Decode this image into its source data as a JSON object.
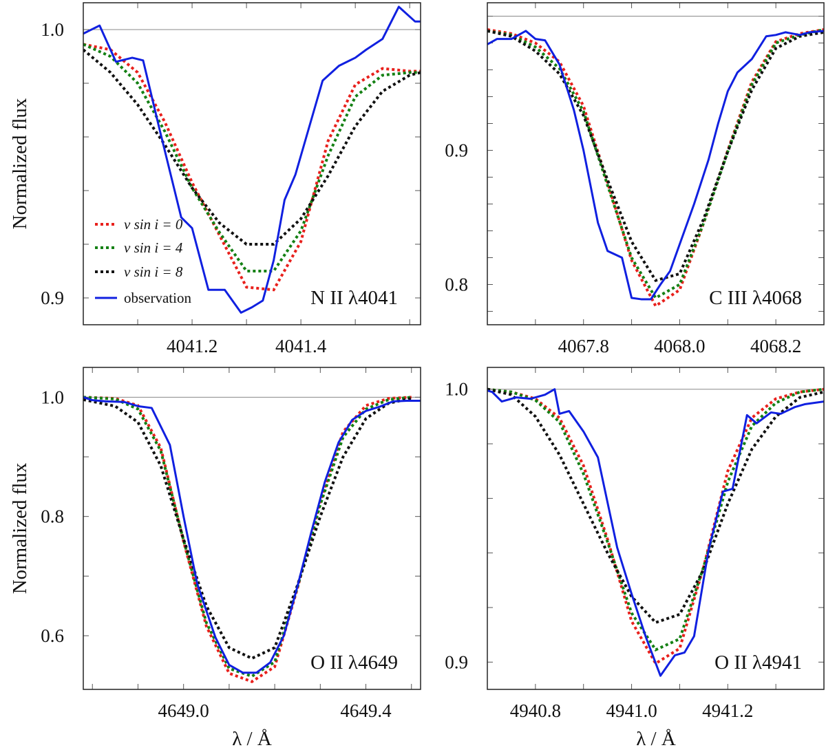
{
  "chart_data": [
    {
      "type": "line",
      "panel": "top-left",
      "line_label": "N II λ4041",
      "ylabel": "Normalized flux",
      "xlabel": "",
      "xlim": [
        4041.0,
        4041.62
      ],
      "ylim": [
        0.89,
        1.01
      ],
      "xticks": [
        4041.2,
        4041.4
      ],
      "xtick_labels": [
        "4041.2",
        "4041.4"
      ],
      "yticks": [
        0.9,
        1.0
      ],
      "ytick_labels": [
        "0.9",
        "1.0"
      ],
      "y_minor_step": 0.02,
      "x_minor_step": 0.1,
      "legend_position": "lower-left",
      "series": [
        {
          "name": "v sin i = 0",
          "color": "#e8201c",
          "style": "dotted",
          "x": [
            4041.0,
            4041.05,
            4041.1,
            4041.15,
            4041.2,
            4041.25,
            4041.3,
            4041.35,
            4041.4,
            4041.45,
            4041.5,
            4041.55,
            4041.6,
            4041.62
          ],
          "y": [
            0.9945,
            0.9925,
            0.984,
            0.9655,
            0.943,
            0.9235,
            0.904,
            0.903,
            0.921,
            0.9585,
            0.9795,
            0.9855,
            0.9845,
            0.9845
          ]
        },
        {
          "name": "v sin i = 4",
          "color": "#148014",
          "style": "dotted",
          "x": [
            4041.0,
            4041.05,
            4041.1,
            4041.15,
            4041.2,
            4041.25,
            4041.3,
            4041.35,
            4041.4,
            4041.45,
            4041.5,
            4041.55,
            4041.6,
            4041.62
          ],
          "y": [
            0.9945,
            0.99,
            0.98,
            0.962,
            0.941,
            0.9245,
            0.91,
            0.91,
            0.925,
            0.953,
            0.975,
            0.983,
            0.984,
            0.984
          ]
        },
        {
          "name": "v sin i = 8",
          "color": "#111111",
          "style": "dotted",
          "x": [
            4041.0,
            4041.05,
            4041.1,
            4041.15,
            4041.2,
            4041.25,
            4041.3,
            4041.35,
            4041.4,
            4041.45,
            4041.5,
            4041.55,
            4041.6,
            4041.62
          ],
          "y": [
            0.9925,
            0.984,
            0.972,
            0.957,
            0.941,
            0.928,
            0.92,
            0.92,
            0.9295,
            0.9455,
            0.964,
            0.977,
            0.983,
            0.984
          ]
        },
        {
          "name": "observation",
          "color": "#1020e0",
          "style": "solid",
          "x": [
            4041.0,
            4041.03,
            4041.06,
            4041.09,
            4041.11,
            4041.14,
            4041.18,
            4041.2,
            4041.23,
            4041.26,
            4041.29,
            4041.31,
            4041.33,
            4041.35,
            4041.37,
            4041.39,
            4041.41,
            4041.44,
            4041.47,
            4041.5,
            4041.52,
            4041.55,
            4041.58,
            4041.61,
            4041.62
          ],
          "y": [
            0.9985,
            1.0015,
            0.988,
            0.9895,
            0.9885,
            0.963,
            0.93,
            0.926,
            0.903,
            0.903,
            0.8945,
            0.8965,
            0.899,
            0.914,
            0.9365,
            0.946,
            0.96,
            0.981,
            0.9865,
            0.9895,
            0.9925,
            0.9965,
            1.0085,
            1.003,
            1.003
          ]
        }
      ]
    },
    {
      "type": "line",
      "panel": "top-right",
      "line_label": "C III λ4068",
      "ylabel": "",
      "xlabel": "",
      "xlim": [
        4067.6,
        4068.3
      ],
      "ylim": [
        0.77,
        1.01
      ],
      "xticks": [
        4067.8,
        4068.0,
        4068.2
      ],
      "xtick_labels": [
        "4067.8",
        "4068.0",
        "4068.2"
      ],
      "yticks": [
        0.8,
        0.9
      ],
      "ytick_labels": [
        "0.8",
        "0.9"
      ],
      "y_minor_step": 0.02,
      "x_minor_step": 0.1,
      "series": [
        {
          "name": "v sin i = 0",
          "color": "#e8201c",
          "style": "dotted",
          "x": [
            4067.6,
            4067.65,
            4067.7,
            4067.75,
            4067.8,
            4067.85,
            4067.9,
            4067.95,
            4068.0,
            4068.05,
            4068.1,
            4068.15,
            4068.2,
            4068.25,
            4068.3
          ],
          "y": [
            0.99,
            0.987,
            0.98,
            0.966,
            0.933,
            0.876,
            0.818,
            0.784,
            0.796,
            0.846,
            0.9,
            0.951,
            0.981,
            0.987,
            0.99
          ]
        },
        {
          "name": "v sin i = 4",
          "color": "#148014",
          "style": "dotted",
          "x": [
            4067.6,
            4067.65,
            4067.7,
            4067.75,
            4067.8,
            4067.85,
            4067.9,
            4067.95,
            4068.0,
            4068.05,
            4068.1,
            4068.15,
            4068.2,
            4068.25,
            4068.3
          ],
          "y": [
            0.989,
            0.986,
            0.977,
            0.961,
            0.929,
            0.874,
            0.82,
            0.79,
            0.8,
            0.846,
            0.899,
            0.949,
            0.98,
            0.986,
            0.99
          ]
        },
        {
          "name": "v sin i = 8",
          "color": "#111111",
          "style": "dotted",
          "x": [
            4067.6,
            4067.65,
            4067.7,
            4067.75,
            4067.8,
            4067.85,
            4067.9,
            4067.95,
            4068.0,
            4068.05,
            4068.1,
            4068.15,
            4068.2,
            4068.25,
            4068.3
          ],
          "y": [
            0.989,
            0.985,
            0.974,
            0.957,
            0.926,
            0.878,
            0.832,
            0.803,
            0.808,
            0.849,
            0.899,
            0.945,
            0.976,
            0.985,
            0.988
          ]
        },
        {
          "name": "observation",
          "color": "#1020e0",
          "style": "solid",
          "x": [
            4067.6,
            4067.62,
            4067.65,
            4067.68,
            4067.7,
            4067.72,
            4067.75,
            4067.78,
            4067.8,
            4067.83,
            4067.85,
            4067.88,
            4067.9,
            4067.92,
            4067.94,
            4067.96,
            4067.98,
            4068.0,
            4068.03,
            4068.06,
            4068.08,
            4068.1,
            4068.12,
            4068.15,
            4068.18,
            4068.2,
            4068.22,
            4068.25,
            4068.27,
            4068.3
          ],
          "y": [
            0.979,
            0.983,
            0.983,
            0.989,
            0.983,
            0.982,
            0.964,
            0.93,
            0.9,
            0.846,
            0.825,
            0.82,
            0.79,
            0.789,
            0.789,
            0.8,
            0.81,
            0.83,
            0.86,
            0.893,
            0.92,
            0.944,
            0.958,
            0.968,
            0.985,
            0.986,
            0.988,
            0.986,
            0.988,
            0.989
          ]
        }
      ]
    },
    {
      "type": "line",
      "panel": "bottom-left",
      "line_label": "O II λ4649",
      "ylabel": "Normalized flux",
      "xlabel": "λ / Å",
      "xlim": [
        4648.78,
        4649.52
      ],
      "ylim": [
        0.51,
        1.05
      ],
      "xticks": [
        4649.0,
        4649.4
      ],
      "xtick_labels": [
        "4649.0",
        "4649.4"
      ],
      "yticks": [
        0.6,
        0.8,
        1.0
      ],
      "ytick_labels": [
        "0.6",
        "0.8",
        "1.0"
      ],
      "y_minor_step": 0.1,
      "x_minor_step": 0.1,
      "series": [
        {
          "name": "v sin i = 0",
          "color": "#e8201c",
          "style": "dotted",
          "x": [
            4648.78,
            4648.85,
            4648.9,
            4648.95,
            4649.0,
            4649.05,
            4649.1,
            4649.15,
            4649.2,
            4649.25,
            4649.3,
            4649.35,
            4649.4,
            4649.45,
            4649.5
          ],
          "y": [
            1.0,
            0.998,
            0.986,
            0.915,
            0.758,
            0.616,
            0.537,
            0.523,
            0.548,
            0.68,
            0.825,
            0.942,
            0.986,
            0.998,
            1.0
          ]
        },
        {
          "name": "v sin i = 4",
          "color": "#148014",
          "style": "dotted",
          "x": [
            4648.78,
            4648.85,
            4648.9,
            4648.95,
            4649.0,
            4649.05,
            4649.1,
            4649.15,
            4649.2,
            4649.25,
            4649.3,
            4649.35,
            4649.4,
            4649.45,
            4649.5
          ],
          "y": [
            1.0,
            0.997,
            0.98,
            0.91,
            0.76,
            0.622,
            0.545,
            0.532,
            0.556,
            0.682,
            0.82,
            0.933,
            0.98,
            0.996,
            1.0
          ]
        },
        {
          "name": "v sin i = 8",
          "color": "#111111",
          "style": "dotted",
          "x": [
            4648.78,
            4648.85,
            4648.9,
            4648.95,
            4649.0,
            4649.05,
            4649.1,
            4649.15,
            4649.2,
            4649.25,
            4649.3,
            4649.35,
            4649.4,
            4649.45,
            4649.5
          ],
          "y": [
            0.996,
            0.985,
            0.958,
            0.885,
            0.762,
            0.65,
            0.58,
            0.562,
            0.58,
            0.685,
            0.8,
            0.9,
            0.964,
            0.99,
            0.998
          ]
        },
        {
          "name": "observation",
          "color": "#1020e0",
          "style": "solid",
          "x": [
            4648.78,
            4648.8,
            4648.83,
            4648.87,
            4648.9,
            4648.93,
            4648.97,
            4649.0,
            4649.03,
            4649.07,
            4649.1,
            4649.13,
            4649.16,
            4649.19,
            4649.22,
            4649.25,
            4649.28,
            4649.31,
            4649.34,
            4649.37,
            4649.4,
            4649.43,
            4649.46,
            4649.49,
            4649.52
          ],
          "y": [
            1.0,
            0.995,
            0.993,
            0.992,
            0.985,
            0.982,
            0.92,
            0.8,
            0.687,
            0.597,
            0.551,
            0.538,
            0.538,
            0.555,
            0.6,
            0.683,
            0.773,
            0.858,
            0.924,
            0.962,
            0.977,
            0.984,
            0.993,
            0.994,
            0.994
          ]
        }
      ]
    },
    {
      "type": "line",
      "panel": "bottom-right",
      "line_label": "O II λ4941",
      "ylabel": "",
      "xlabel": "λ / Å",
      "xlim": [
        4940.7,
        4941.4
      ],
      "ylim": [
        0.89,
        1.008
      ],
      "xticks": [
        4940.8,
        4941.0,
        4941.2
      ],
      "xtick_labels": [
        "4940.8",
        "4941.0",
        "4941.2"
      ],
      "yticks": [
        0.9,
        1.0
      ],
      "ytick_labels": [
        "0.9",
        "1.0"
      ],
      "y_minor_step": 0.02,
      "x_minor_step": 0.1,
      "series": [
        {
          "name": "v sin i = 0",
          "color": "#e8201c",
          "style": "dotted",
          "x": [
            4940.7,
            4940.75,
            4940.8,
            4940.85,
            4940.9,
            4940.95,
            4941.0,
            4941.05,
            4941.1,
            4941.15,
            4941.2,
            4941.25,
            4941.3,
            4941.35,
            4941.4
          ],
          "y": [
            1.0,
            0.999,
            0.9965,
            0.9895,
            0.972,
            0.945,
            0.915,
            0.8995,
            0.905,
            0.935,
            0.97,
            0.9895,
            0.9965,
            0.999,
            1.0
          ]
        },
        {
          "name": "v sin i = 4",
          "color": "#148014",
          "style": "dotted",
          "x": [
            4940.7,
            4940.75,
            4940.8,
            4940.85,
            4940.9,
            4940.95,
            4941.0,
            4941.05,
            4941.1,
            4941.15,
            4941.2,
            4941.25,
            4941.3,
            4941.35,
            4941.4
          ],
          "y": [
            1.0,
            0.999,
            0.996,
            0.988,
            0.969,
            0.944,
            0.918,
            0.9045,
            0.9085,
            0.935,
            0.966,
            0.9865,
            0.995,
            0.999,
            1.0
          ]
        },
        {
          "name": "v sin i = 8",
          "color": "#111111",
          "style": "dotted",
          "x": [
            4940.7,
            4940.75,
            4940.8,
            4940.85,
            4940.9,
            4940.95,
            4941.0,
            4941.05,
            4941.1,
            4941.15,
            4941.2,
            4941.25,
            4941.3,
            4941.35,
            4941.4
          ],
          "y": [
            1.0,
            0.998,
            0.99,
            0.976,
            0.958,
            0.94,
            0.924,
            0.9145,
            0.9175,
            0.934,
            0.958,
            0.978,
            0.99,
            0.997,
            0.999
          ]
        },
        {
          "name": "observation",
          "color": "#1020e0",
          "style": "solid",
          "x": [
            4940.7,
            4940.71,
            4940.73,
            4940.76,
            4940.79,
            4940.82,
            4940.84,
            4940.85,
            4940.87,
            4940.9,
            4940.93,
            4940.97,
            4941.0,
            4941.03,
            4941.06,
            4941.09,
            4941.11,
            4941.13,
            4941.16,
            4941.19,
            4941.21,
            4941.24,
            4941.26,
            4941.29,
            4941.31,
            4941.34,
            4941.36,
            4941.4
          ],
          "y": [
            0.9995,
            0.999,
            0.9955,
            0.997,
            0.9965,
            0.998,
            1.0,
            0.991,
            0.992,
            0.9845,
            0.975,
            0.942,
            0.925,
            0.909,
            0.895,
            0.9025,
            0.9035,
            0.9095,
            0.941,
            0.9625,
            0.9635,
            0.9905,
            0.9875,
            0.9915,
            0.991,
            0.9935,
            0.9945,
            0.9955
          ]
        }
      ]
    }
  ]
}
